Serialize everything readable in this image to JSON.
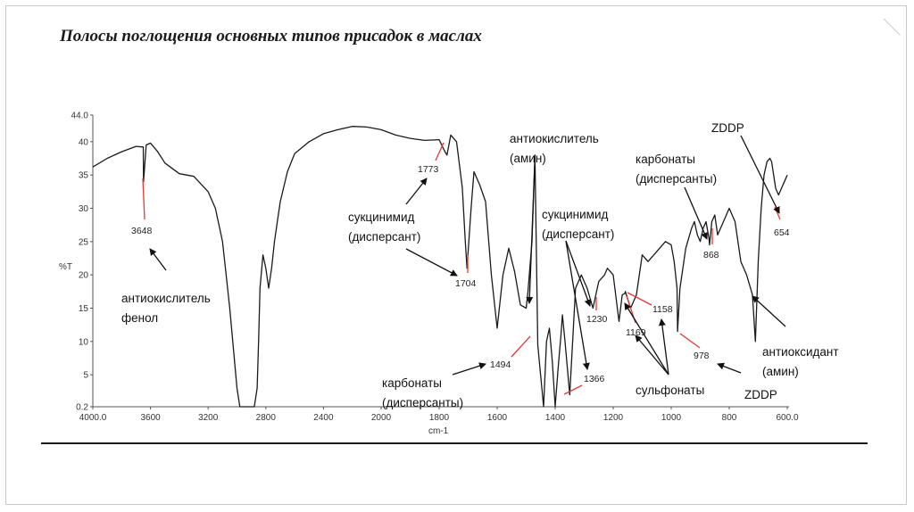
{
  "slide": {
    "title": "Полосы поглощения основных типов присадок в маслах"
  },
  "colors": {
    "spectrum": "#1a1a1a",
    "marker": "#e53935",
    "arrow": "#111111"
  },
  "chart_data": {
    "type": "line",
    "title": "",
    "xlabel": "cm-1",
    "ylabel": "%T",
    "xlim": [
      4000,
      600
    ],
    "ylim": [
      0.2,
      44
    ],
    "x_reversed": true,
    "grid": false,
    "x_ticks": [
      "4000.0",
      "3600",
      "3200",
      "2800",
      "2400",
      "2000",
      "1800",
      "1600",
      "1400",
      "1200",
      "1000",
      "800",
      "600.0"
    ],
    "y_ticks": [
      {
        "value": 44,
        "label": "44.0"
      },
      {
        "value": 40,
        "label": "40"
      },
      {
        "value": 35,
        "label": "35"
      },
      {
        "value": 30,
        "label": "30"
      },
      {
        "value": 25,
        "label": "25"
      },
      {
        "value": 20,
        "label": "20"
      },
      {
        "value": 15,
        "label": "15"
      },
      {
        "value": 10,
        "label": "10"
      },
      {
        "value": 5,
        "label": "5"
      },
      {
        "value": 0.2,
        "label": "0.2"
      }
    ],
    "series": [
      {
        "x": [
          4000,
          3900,
          3800,
          3700,
          3650,
          3648,
          3630,
          3600,
          3550,
          3500,
          3400,
          3300,
          3200,
          3150,
          3100,
          3050,
          3000,
          2980,
          2960,
          2950,
          2940,
          2920,
          2900,
          2880,
          2860,
          2850,
          2840,
          2820,
          2800,
          2780,
          2760,
          2740,
          2720,
          2700,
          2650,
          2600,
          2500,
          2400,
          2300,
          2200,
          2100,
          2000,
          1950,
          1900,
          1850,
          1800,
          1780,
          1773,
          1760,
          1740,
          1720,
          1710,
          1704,
          1690,
          1680,
          1660,
          1640,
          1620,
          1600,
          1580,
          1560,
          1540,
          1520,
          1500,
          1494,
          1480,
          1470,
          1460,
          1440,
          1430,
          1420,
          1410,
          1400,
          1390,
          1380,
          1375,
          1366,
          1350,
          1330,
          1310,
          1290,
          1270,
          1250,
          1230,
          1220,
          1200,
          1180,
          1169,
          1160,
          1158,
          1140,
          1120,
          1100,
          1080,
          1060,
          1040,
          1020,
          1000,
          990,
          980,
          978,
          970,
          950,
          930,
          920,
          910,
          900,
          890,
          880,
          870,
          868,
          860,
          850,
          840,
          820,
          800,
          780,
          760,
          740,
          720,
          710,
          700,
          690,
          680,
          670,
          660,
          654,
          640,
          630,
          620,
          610,
          600
        ],
        "values": [
          36.2,
          37.5,
          38.5,
          39.3,
          39.2,
          34.0,
          39.5,
          39.8,
          38.5,
          36.8,
          35.2,
          34.8,
          32.5,
          30.0,
          25.0,
          15.0,
          3.0,
          0.2,
          0.2,
          0.2,
          0.2,
          0.2,
          0.2,
          0.2,
          3.0,
          10.0,
          18.0,
          23.0,
          21.0,
          18.0,
          21.0,
          25.0,
          28.0,
          31.0,
          35.5,
          38.2,
          40.0,
          41.2,
          41.8,
          42.3,
          42.2,
          41.8,
          41.0,
          40.5,
          40.2,
          40.3,
          38.5,
          38.0,
          41.0,
          40.0,
          33.0,
          25.0,
          21.0,
          30.0,
          35.5,
          33.5,
          31.0,
          20.0,
          12.0,
          20.0,
          24.0,
          20.5,
          15.5,
          15.0,
          17.5,
          25.0,
          38.0,
          9.5,
          0.2,
          10.0,
          12.0,
          7.0,
          0.2,
          6.0,
          11.0,
          14.0,
          10.0,
          2.0,
          18.0,
          20.0,
          18.0,
          15.0,
          19.0,
          20.0,
          21.0,
          20.0,
          13.0,
          17.0,
          17.2,
          17.5,
          15.0,
          17.0,
          23.0,
          22.0,
          23.0,
          24.0,
          25.0,
          24.5,
          22.0,
          18.0,
          11.5,
          18.0,
          24.0,
          27.0,
          28.0,
          26.0,
          25.0,
          27.0,
          28.0,
          25.5,
          24.5,
          28.0,
          29.0,
          26.0,
          28.0,
          30.0,
          28.0,
          22.0,
          20.0,
          17.0,
          10.0,
          22.0,
          30.0,
          35.0,
          37.0,
          37.5,
          37.0,
          33.0,
          32.0,
          33.0,
          34.0,
          35.0
        ]
      }
    ],
    "peaks": [
      {
        "x": 3648,
        "label": "3648"
      },
      {
        "x": 1773,
        "label": "1773"
      },
      {
        "x": 1704,
        "label": "1704"
      },
      {
        "x": 1494,
        "label": "1494"
      },
      {
        "x": 1366,
        "label": "1366"
      },
      {
        "x": 1230,
        "label": "1230"
      },
      {
        "x": 1169,
        "label": "1169"
      },
      {
        "x": 1158,
        "label": "1158"
      },
      {
        "x": 978,
        "label": "978"
      },
      {
        "x": 868,
        "label": "868"
      },
      {
        "x": 654,
        "label": "654"
      }
    ],
    "annotations": {
      "phenol_line1": "антиокислитель",
      "phenol_line2": "фенол",
      "succ1_line1": "сукцинимид",
      "succ1_line2": "(дисперсант)",
      "amine1_line1": "антиокислитель",
      "amine1_line2": "(амин)",
      "succ2_line1": "сукцинимид",
      "succ2_line2": "(дисперсант)",
      "carb1_line1": "карбонаты",
      "carb1_line2": "(дисперсанты)",
      "carb2_line1": "карбонаты",
      "carb2_line2": "(дисперсанты)",
      "zddp_top": "ZDDP",
      "zddp_bottom": "ZDDP",
      "sulfonates": "сульфонаты",
      "amine2_line1": "антиоксидант",
      "amine2_line2": "(амин)"
    }
  }
}
